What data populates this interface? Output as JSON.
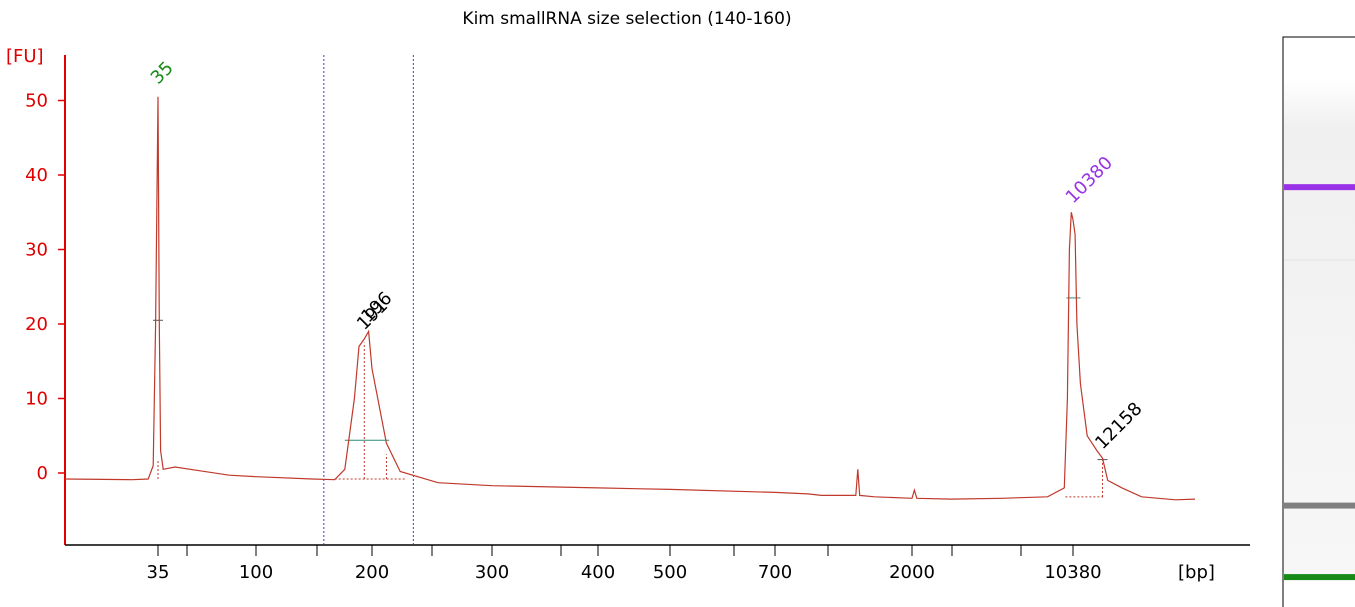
{
  "chart_data": {
    "type": "line",
    "title": "Kim smallRNA size selection (140-160)",
    "ylabel": "[FU]",
    "xlabel": "[bp]",
    "ylim": [
      -9,
      57
    ],
    "y_ticks": [
      0,
      10,
      20,
      30,
      40,
      50
    ],
    "x_tick_labels": [
      "35",
      "100",
      "200",
      "300",
      "400",
      "500",
      "700",
      "2000",
      "10380"
    ],
    "region_markers_bp": [
      150,
      230
    ],
    "peak_labels": [
      {
        "label": "35",
        "x_bp": 35,
        "fu": 51,
        "color": "#178a17"
      },
      {
        "label": "191",
        "x_bp": 191,
        "fu": 18,
        "color": "#000000"
      },
      {
        "label": "196",
        "x_bp": 196,
        "fu": 19,
        "color": "#000000"
      },
      {
        "label": "10380",
        "x_bp": 10380,
        "fu": 35,
        "color": "#9932e6"
      },
      {
        "label": "12158",
        "x_bp": 12158,
        "fu": 2,
        "color": "#000000"
      }
    ],
    "series": [
      {
        "color": "#c0392b",
        "points_bp_fu": [
          [
            20,
            -0.8
          ],
          [
            30,
            -0.9
          ],
          [
            33,
            -0.8
          ],
          [
            34,
            1
          ],
          [
            34.5,
            20
          ],
          [
            35,
            50.5
          ],
          [
            35.5,
            20
          ],
          [
            36,
            3
          ],
          [
            37,
            0.5
          ],
          [
            42,
            0.8
          ],
          [
            55,
            0.3
          ],
          [
            75,
            -0.3
          ],
          [
            100,
            -0.5
          ],
          [
            140,
            -0.8
          ],
          [
            160,
            -0.9
          ],
          [
            170,
            0.5
          ],
          [
            180,
            10
          ],
          [
            185,
            17
          ],
          [
            191,
            18
          ],
          [
            196,
            19
          ],
          [
            200,
            14
          ],
          [
            210,
            4
          ],
          [
            220,
            0.2
          ],
          [
            250,
            -1.3
          ],
          [
            300,
            -1.7
          ],
          [
            400,
            -2
          ],
          [
            500,
            -2.2
          ],
          [
            700,
            -2.6
          ],
          [
            900,
            -2.8
          ],
          [
            1000,
            -3
          ],
          [
            1200,
            -3
          ],
          [
            1300,
            -3
          ],
          [
            1320,
            0.5
          ],
          [
            1340,
            -3
          ],
          [
            1500,
            -3.2
          ],
          [
            2000,
            -3.4
          ],
          [
            2050,
            -2.3
          ],
          [
            2100,
            -3.4
          ],
          [
            3000,
            -3.5
          ],
          [
            5000,
            -3.4
          ],
          [
            8000,
            -3.2
          ],
          [
            9500,
            -2
          ],
          [
            9800,
            10
          ],
          [
            10000,
            30
          ],
          [
            10200,
            35
          ],
          [
            10380,
            34
          ],
          [
            10500,
            32
          ],
          [
            10600,
            20
          ],
          [
            10800,
            12
          ],
          [
            11200,
            5
          ],
          [
            11800,
            3
          ],
          [
            12158,
            2
          ],
          [
            12500,
            -1
          ],
          [
            13500,
            -2
          ],
          [
            15000,
            -3.2
          ],
          [
            18000,
            -3.6
          ],
          [
            20000,
            -3.5
          ]
        ]
      }
    ]
  },
  "gel": {
    "bands": [
      {
        "name": "upper-marker-band",
        "color": "#9932e6",
        "position": 0.273
      },
      {
        "name": "sample-band",
        "color": "#808080",
        "position": 0.852
      },
      {
        "name": "lower-marker-band",
        "color": "#178a17",
        "position": 0.982
      }
    ]
  }
}
